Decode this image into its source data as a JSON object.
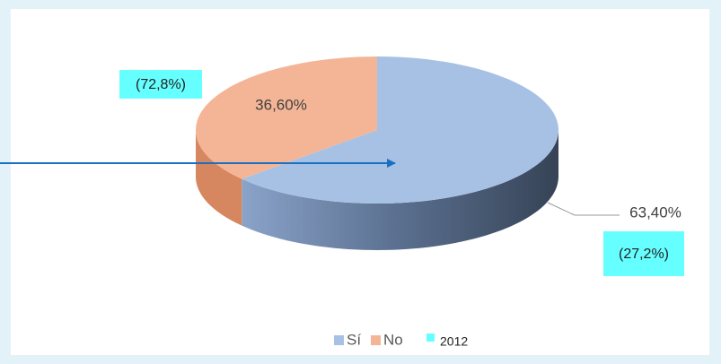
{
  "chart_data": {
    "type": "pie",
    "categories": [
      "Sí",
      "No"
    ],
    "values": [
      63.4,
      36.6
    ],
    "value_labels": [
      "63,40%",
      "36,60%"
    ],
    "colors": [
      "#a7c1e5",
      "#f4b596"
    ],
    "annotations": [
      "(27,2%)",
      "(72,8%)"
    ],
    "annotation_color": "#66ffff",
    "legend_extra": {
      "name": "2012",
      "color": "#66ffff"
    },
    "legend": "bottom"
  }
}
